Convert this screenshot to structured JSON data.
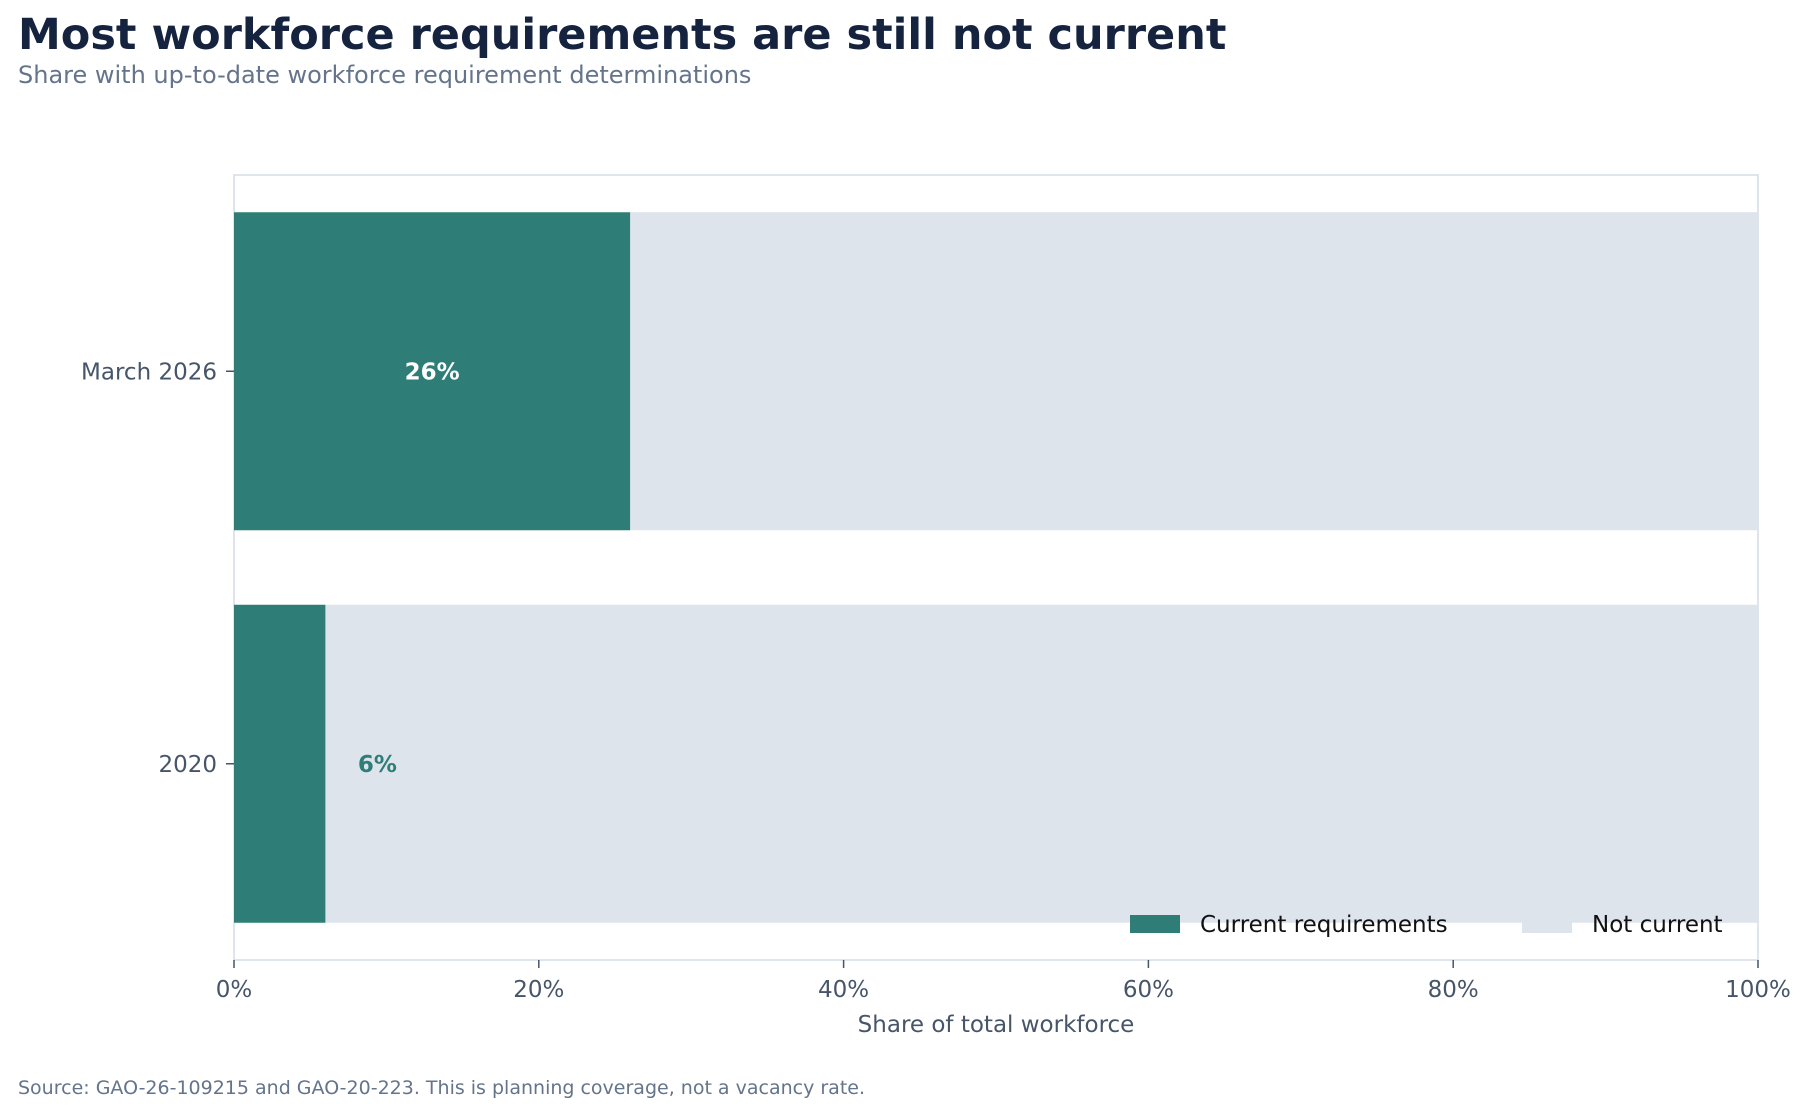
{
  "header": {
    "title": "Most workforce requirements are still not current",
    "subtitle": "Share with up-to-date workforce requirement determinations"
  },
  "footer": {
    "source": "Source: GAO-26-109215 and GAO-20-223. This is planning coverage, not a vacancy rate."
  },
  "chart_data": {
    "type": "bar",
    "orientation": "horizontal",
    "stacked": true,
    "categories": [
      "March 2026",
      "2020"
    ],
    "series": [
      {
        "name": "Current requirements",
        "values": [
          26,
          6
        ],
        "color": "#2e7d77"
      },
      {
        "name": "Not current",
        "values": [
          74,
          94
        ],
        "color": "#dee4ec"
      }
    ],
    "data_labels": [
      "26%",
      "6%"
    ],
    "xlabel": "Share of total workforce",
    "xlim": [
      0,
      100
    ],
    "xticks": [
      0,
      20,
      40,
      60,
      80,
      100
    ],
    "xtick_labels": [
      "0%",
      "20%",
      "40%",
      "60%",
      "80%",
      "100%"
    ],
    "grid": false,
    "legend_position": "bottom-right",
    "colors": {
      "axis": "#cbd5e1",
      "tick_text": "#475569",
      "label_dark": "#2e7d77",
      "label_light": "#ffffff"
    }
  }
}
